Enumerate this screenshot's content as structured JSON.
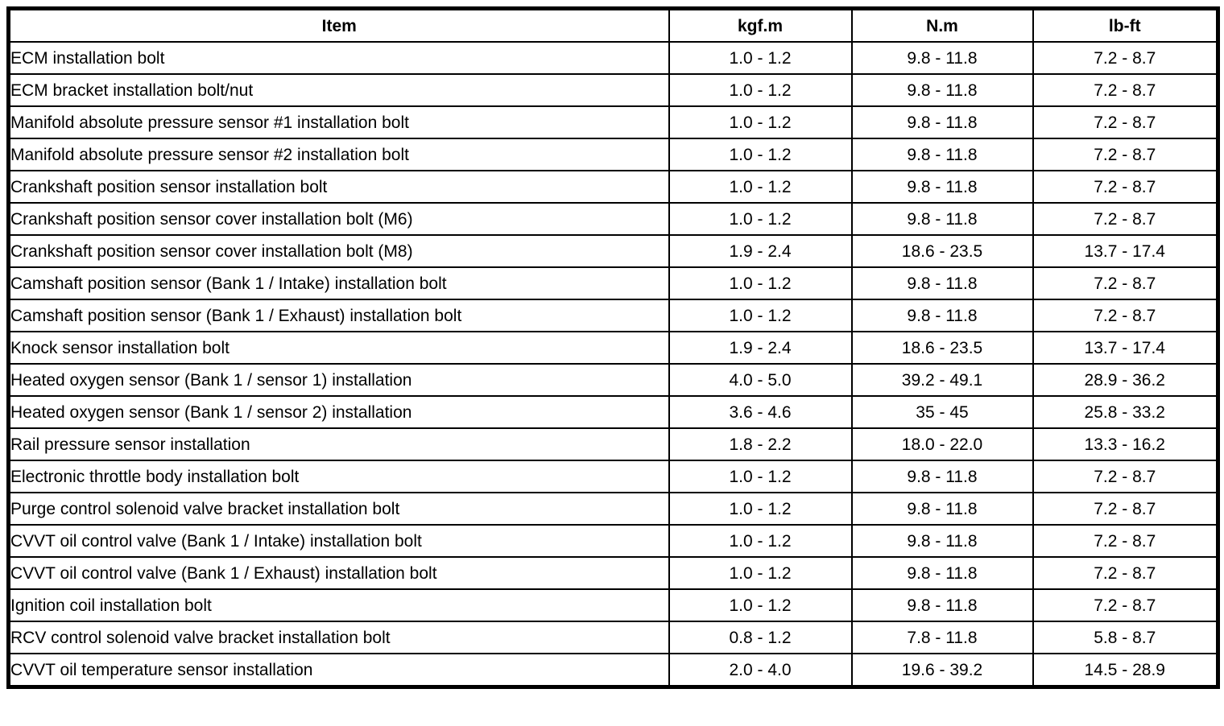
{
  "table": {
    "columns": [
      "Item",
      "kgf.m",
      "N.m",
      "lb-ft"
    ],
    "rows": [
      {
        "item": "ECM installation bolt",
        "kgfm": "1.0 - 1.2",
        "nm": "9.8 - 11.8",
        "lbft": "7.2 - 8.7"
      },
      {
        "item": "ECM bracket installation bolt/nut",
        "kgfm": "1.0 - 1.2",
        "nm": "9.8 - 11.8",
        "lbft": "7.2 - 8.7"
      },
      {
        "item": "Manifold absolute pressure sensor #1 installation bolt",
        "kgfm": "1.0 - 1.2",
        "nm": "9.8 - 11.8",
        "lbft": "7.2 - 8.7"
      },
      {
        "item": "Manifold absolute pressure sensor #2 installation bolt",
        "kgfm": "1.0 - 1.2",
        "nm": "9.8 - 11.8",
        "lbft": "7.2 - 8.7"
      },
      {
        "item": "Crankshaft position sensor installation bolt",
        "kgfm": "1.0 - 1.2",
        "nm": "9.8 - 11.8",
        "lbft": "7.2 - 8.7"
      },
      {
        "item": "Crankshaft position sensor cover installation bolt (M6)",
        "kgfm": "1.0 - 1.2",
        "nm": "9.8 - 11.8",
        "lbft": "7.2 - 8.7"
      },
      {
        "item": "Crankshaft position sensor cover installation bolt (M8)",
        "kgfm": "1.9 - 2.4",
        "nm": "18.6 - 23.5",
        "lbft": "13.7 - 17.4"
      },
      {
        "item": "Camshaft position sensor (Bank 1 / Intake) installation bolt",
        "kgfm": "1.0 - 1.2",
        "nm": "9.8 - 11.8",
        "lbft": "7.2 - 8.7"
      },
      {
        "item": "Camshaft position sensor (Bank 1 / Exhaust) installation bolt",
        "kgfm": "1.0 - 1.2",
        "nm": "9.8 - 11.8",
        "lbft": "7.2 - 8.7"
      },
      {
        "item": "Knock sensor installation bolt",
        "kgfm": "1.9 - 2.4",
        "nm": "18.6 - 23.5",
        "lbft": "13.7 - 17.4"
      },
      {
        "item": "Heated oxygen sensor (Bank 1 / sensor 1) installation",
        "kgfm": "4.0 - 5.0",
        "nm": "39.2 - 49.1",
        "lbft": "28.9 - 36.2"
      },
      {
        "item": "Heated oxygen sensor (Bank 1 / sensor 2) installation",
        "kgfm": "3.6 - 4.6",
        "nm": "35 - 45",
        "lbft": "25.8 - 33.2"
      },
      {
        "item": "Rail pressure sensor installation",
        "kgfm": "1.8 - 2.2",
        "nm": "18.0 - 22.0",
        "lbft": "13.3 - 16.2"
      },
      {
        "item": "Electronic throttle body installation bolt",
        "kgfm": "1.0 - 1.2",
        "nm": "9.8 - 11.8",
        "lbft": "7.2 - 8.7"
      },
      {
        "item": "Purge control solenoid valve bracket installation bolt",
        "kgfm": "1.0 - 1.2",
        "nm": "9.8 - 11.8",
        "lbft": "7.2 - 8.7"
      },
      {
        "item": "CVVT oil control valve (Bank 1 / Intake) installation bolt",
        "kgfm": "1.0 - 1.2",
        "nm": "9.8 - 11.8",
        "lbft": "7.2 - 8.7"
      },
      {
        "item": "CVVT oil control valve (Bank 1 / Exhaust) installation bolt",
        "kgfm": "1.0 - 1.2",
        "nm": "9.8 - 11.8",
        "lbft": "7.2 - 8.7"
      },
      {
        "item": "Ignition coil installation bolt",
        "kgfm": "1.0 - 1.2",
        "nm": "9.8 - 11.8",
        "lbft": "7.2 - 8.7"
      },
      {
        "item": "RCV control solenoid valve bracket installation bolt",
        "kgfm": "0.8 - 1.2",
        "nm": "7.8 - 11.8",
        "lbft": "5.8 - 8.7"
      },
      {
        "item": "CVVT oil temperature sensor installation",
        "kgfm": "2.0 - 4.0",
        "nm": "19.6 - 39.2",
        "lbft": "14.5 - 28.9"
      }
    ]
  },
  "colors": {
    "border": "#000000",
    "text": "#000000",
    "background": "#ffffff"
  }
}
